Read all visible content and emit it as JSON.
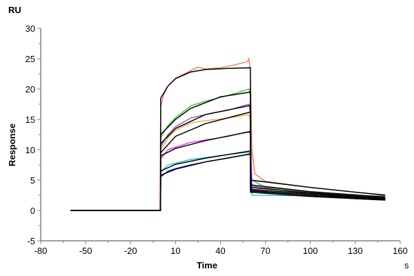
{
  "chart_data": {
    "type": "line",
    "title": "",
    "xlabel": "Time",
    "xunit": "s",
    "ylabel": "Response",
    "yunit": "RU",
    "xlim": [
      -80,
      160
    ],
    "ylim": [
      -5,
      30
    ],
    "xticks": [
      -80,
      -50,
      -20,
      10,
      40,
      70,
      100,
      130,
      160
    ],
    "yticks": [
      -5,
      0,
      5,
      10,
      15,
      20,
      25,
      30
    ],
    "grid": false,
    "fit_color": "#000000",
    "curves": [
      {
        "color": "#ff6347",
        "data": [
          [
            -60,
            0
          ],
          [
            -0.5,
            0
          ],
          [
            0,
            17
          ],
          [
            2,
            19
          ],
          [
            5,
            20.5
          ],
          [
            10,
            21.8
          ],
          [
            20,
            23
          ],
          [
            25,
            23.6
          ],
          [
            30,
            23.3
          ],
          [
            40,
            23.5
          ],
          [
            50,
            24
          ],
          [
            58,
            24.5
          ],
          [
            59,
            25
          ],
          [
            60,
            23
          ],
          [
            61,
            10
          ],
          [
            63,
            6
          ],
          [
            70,
            4.8
          ],
          [
            100,
            3.8
          ],
          [
            130,
            3
          ],
          [
            150,
            2.6
          ]
        ],
        "fit": [
          [
            -60,
            0
          ],
          [
            0,
            0
          ],
          [
            0.1,
            18.5
          ],
          [
            5,
            20.5
          ],
          [
            10,
            21.7
          ],
          [
            20,
            22.8
          ],
          [
            30,
            23.2
          ],
          [
            45,
            23.4
          ],
          [
            60,
            23.5
          ],
          [
            60.1,
            5
          ],
          [
            100,
            3.8
          ],
          [
            150,
            2.5
          ]
        ]
      },
      {
        "color": "#22bb22",
        "data": [
          [
            -60,
            0
          ],
          [
            0,
            0
          ],
          [
            0.1,
            12
          ],
          [
            5,
            14
          ],
          [
            10,
            15.3
          ],
          [
            20,
            17.2
          ],
          [
            30,
            18
          ],
          [
            40,
            18.6
          ],
          [
            50,
            19.3
          ],
          [
            59,
            20
          ],
          [
            60,
            19
          ],
          [
            61,
            5
          ],
          [
            70,
            3.8
          ],
          [
            110,
            2.8
          ],
          [
            150,
            2.2
          ]
        ],
        "fit": [
          [
            -60,
            0
          ],
          [
            0,
            0
          ],
          [
            0.1,
            12.5
          ],
          [
            10,
            15
          ],
          [
            20,
            16.8
          ],
          [
            40,
            18.7
          ],
          [
            60,
            19.5
          ],
          [
            60.1,
            4.2
          ],
          [
            100,
            3.1
          ],
          [
            150,
            2.2
          ]
        ]
      },
      {
        "color": "#9932cc",
        "data": [
          [
            -60,
            0
          ],
          [
            0,
            0
          ],
          [
            0.1,
            10.5
          ],
          [
            5,
            12.5
          ],
          [
            10,
            13.8
          ],
          [
            20,
            15.2
          ],
          [
            30,
            15.8
          ],
          [
            45,
            16.5
          ],
          [
            59,
            17.5
          ],
          [
            60,
            16
          ],
          [
            61,
            4
          ],
          [
            90,
            3
          ],
          [
            150,
            2.1
          ]
        ],
        "fit": [
          [
            -60,
            0
          ],
          [
            0,
            0
          ],
          [
            0.1,
            11
          ],
          [
            10,
            13.5
          ],
          [
            30,
            15.8
          ],
          [
            60,
            17.3
          ],
          [
            60.1,
            3.8
          ],
          [
            100,
            2.9
          ],
          [
            150,
            2
          ]
        ]
      },
      {
        "color": "#e8a020",
        "data": [
          [
            -60,
            0
          ],
          [
            0,
            0
          ],
          [
            0.1,
            10
          ],
          [
            5,
            12
          ],
          [
            10,
            13.2
          ],
          [
            20,
            14.4
          ],
          [
            30,
            14.8
          ],
          [
            45,
            15.2
          ],
          [
            59,
            15.8
          ],
          [
            60,
            15
          ],
          [
            61,
            3.5
          ],
          [
            100,
            2.7
          ],
          [
            150,
            2
          ]
        ],
        "fit": [
          [
            -60,
            0
          ],
          [
            0,
            0
          ],
          [
            0.1,
            9.5
          ],
          [
            10,
            12.2
          ],
          [
            30,
            14.3
          ],
          [
            60,
            16.2
          ],
          [
            60.1,
            3.5
          ],
          [
            100,
            2.7
          ],
          [
            150,
            2
          ]
        ]
      },
      {
        "color": "#ff00ff",
        "data": [
          [
            -60,
            0
          ],
          [
            0,
            0
          ],
          [
            0.1,
            8.5
          ],
          [
            5,
            10
          ],
          [
            10,
            10.4
          ],
          [
            20,
            11.2
          ],
          [
            30,
            11.6
          ],
          [
            45,
            12.2
          ],
          [
            59,
            13
          ],
          [
            60,
            12.5
          ],
          [
            61,
            3.3
          ],
          [
            100,
            2.5
          ],
          [
            150,
            1.9
          ]
        ],
        "fit": [
          [
            -60,
            0
          ],
          [
            0,
            0
          ],
          [
            0.1,
            9
          ],
          [
            10,
            10.2
          ],
          [
            30,
            11.5
          ],
          [
            60,
            13
          ],
          [
            60.1,
            3.3
          ],
          [
            100,
            2.5
          ],
          [
            150,
            1.9
          ]
        ]
      },
      {
        "color": "#00c0c0",
        "data": [
          [
            -60,
            0
          ],
          [
            0,
            0
          ],
          [
            0.1,
            6.3
          ],
          [
            5,
            7.5
          ],
          [
            10,
            7.8
          ],
          [
            20,
            8.4
          ],
          [
            30,
            8.7
          ],
          [
            45,
            9.2
          ],
          [
            59,
            9.6
          ],
          [
            60,
            9
          ],
          [
            61,
            2.5
          ],
          [
            100,
            2.4
          ],
          [
            150,
            2.4
          ]
        ],
        "fit": [
          [
            -60,
            0
          ],
          [
            0,
            0
          ],
          [
            0.1,
            6.5
          ],
          [
            10,
            7.6
          ],
          [
            30,
            8.6
          ],
          [
            60,
            9.8
          ],
          [
            60.1,
            3.2
          ],
          [
            100,
            2.5
          ],
          [
            150,
            1.8
          ]
        ]
      },
      {
        "color": "#0000ee",
        "data": [
          [
            -60,
            0
          ],
          [
            0,
            0
          ],
          [
            0.1,
            5.5
          ],
          [
            5,
            6.5
          ],
          [
            10,
            6.9
          ],
          [
            20,
            7.5
          ],
          [
            30,
            8
          ],
          [
            45,
            8.6
          ],
          [
            59,
            9.3
          ],
          [
            60,
            9
          ],
          [
            61,
            3
          ],
          [
            100,
            2.3
          ],
          [
            150,
            1.7
          ]
        ],
        "fit": [
          [
            -60,
            0
          ],
          [
            0,
            0
          ],
          [
            0.1,
            5.8
          ],
          [
            10,
            6.8
          ],
          [
            30,
            8
          ],
          [
            60,
            9.3
          ],
          [
            60.1,
            3
          ],
          [
            100,
            2.3
          ],
          [
            150,
            1.7
          ]
        ]
      }
    ]
  }
}
